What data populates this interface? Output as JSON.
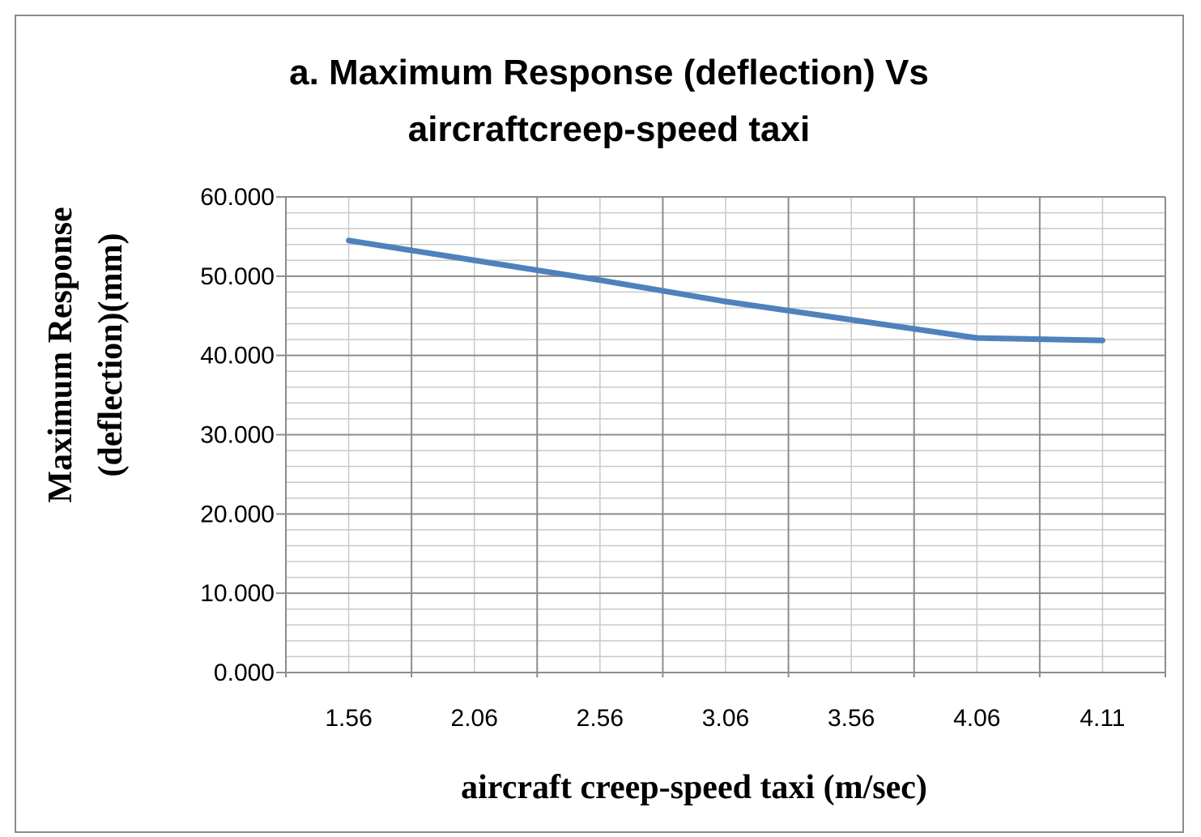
{
  "chart_data": {
    "type": "line",
    "title_lines": [
      "a. Maximum Response (deflection) Vs",
      "aircraftcreep-speed taxi"
    ],
    "xlabel": "aircraft  creep-speed taxi  (m/sec)",
    "ylabel_lines": [
      "Maximum Response",
      "(deflection)(mm)"
    ],
    "categories": [
      "1.56",
      "2.06",
      "2.56",
      "3.06",
      "3.56",
      "4.06",
      "4.11"
    ],
    "series": [
      {
        "values": [
          54.5,
          52.0,
          49.5,
          46.8,
          44.5,
          42.2,
          41.9
        ]
      }
    ],
    "ylim": [
      0,
      60
    ],
    "y_major_ticks": [
      "0.000",
      "10.000",
      "20.000",
      "30.000",
      "40.000",
      "50.000",
      "60.000"
    ],
    "y_minor_step": 2,
    "grid": true,
    "legend": "none",
    "line_color": "#4f81bd"
  }
}
